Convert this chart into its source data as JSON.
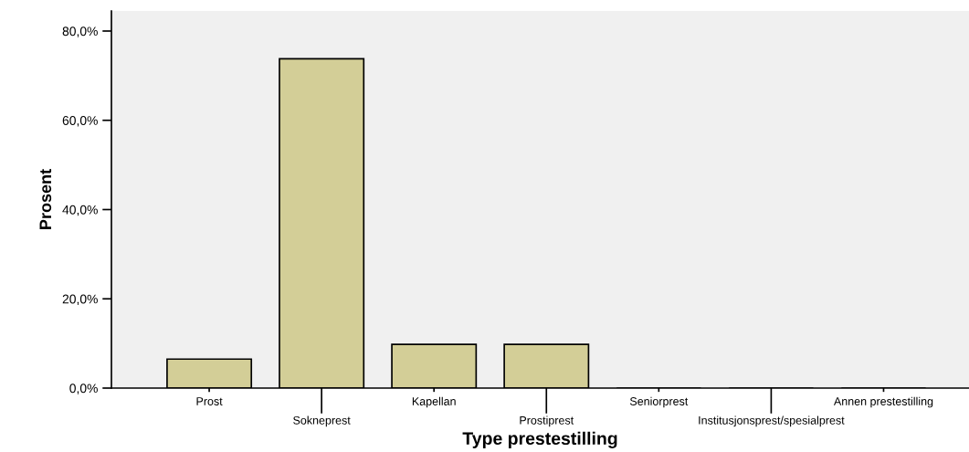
{
  "chart_data": {
    "type": "bar",
    "xlabel": "Type prestestilling",
    "ylabel": "Prosent",
    "categories": [
      "Prost",
      "Sokneprest",
      "Kapellan",
      "Prostiprest",
      "Seniorprest",
      "Institusjonsprest/spesialprest",
      "Annen prestestilling"
    ],
    "values": [
      6.5,
      73.8,
      9.8,
      9.8,
      0,
      0,
      0
    ],
    "color": "#d3ce97",
    "ylim": [
      0,
      84.5
    ],
    "yticks": [
      {
        "value": 0,
        "label": "0,0%"
      },
      {
        "value": 20,
        "label": "20,0%"
      },
      {
        "value": 40,
        "label": "40,0%"
      },
      {
        "value": 60,
        "label": "60,0%"
      },
      {
        "value": 80,
        "label": "80,0%"
      }
    ],
    "grid": false,
    "legend": false
  }
}
